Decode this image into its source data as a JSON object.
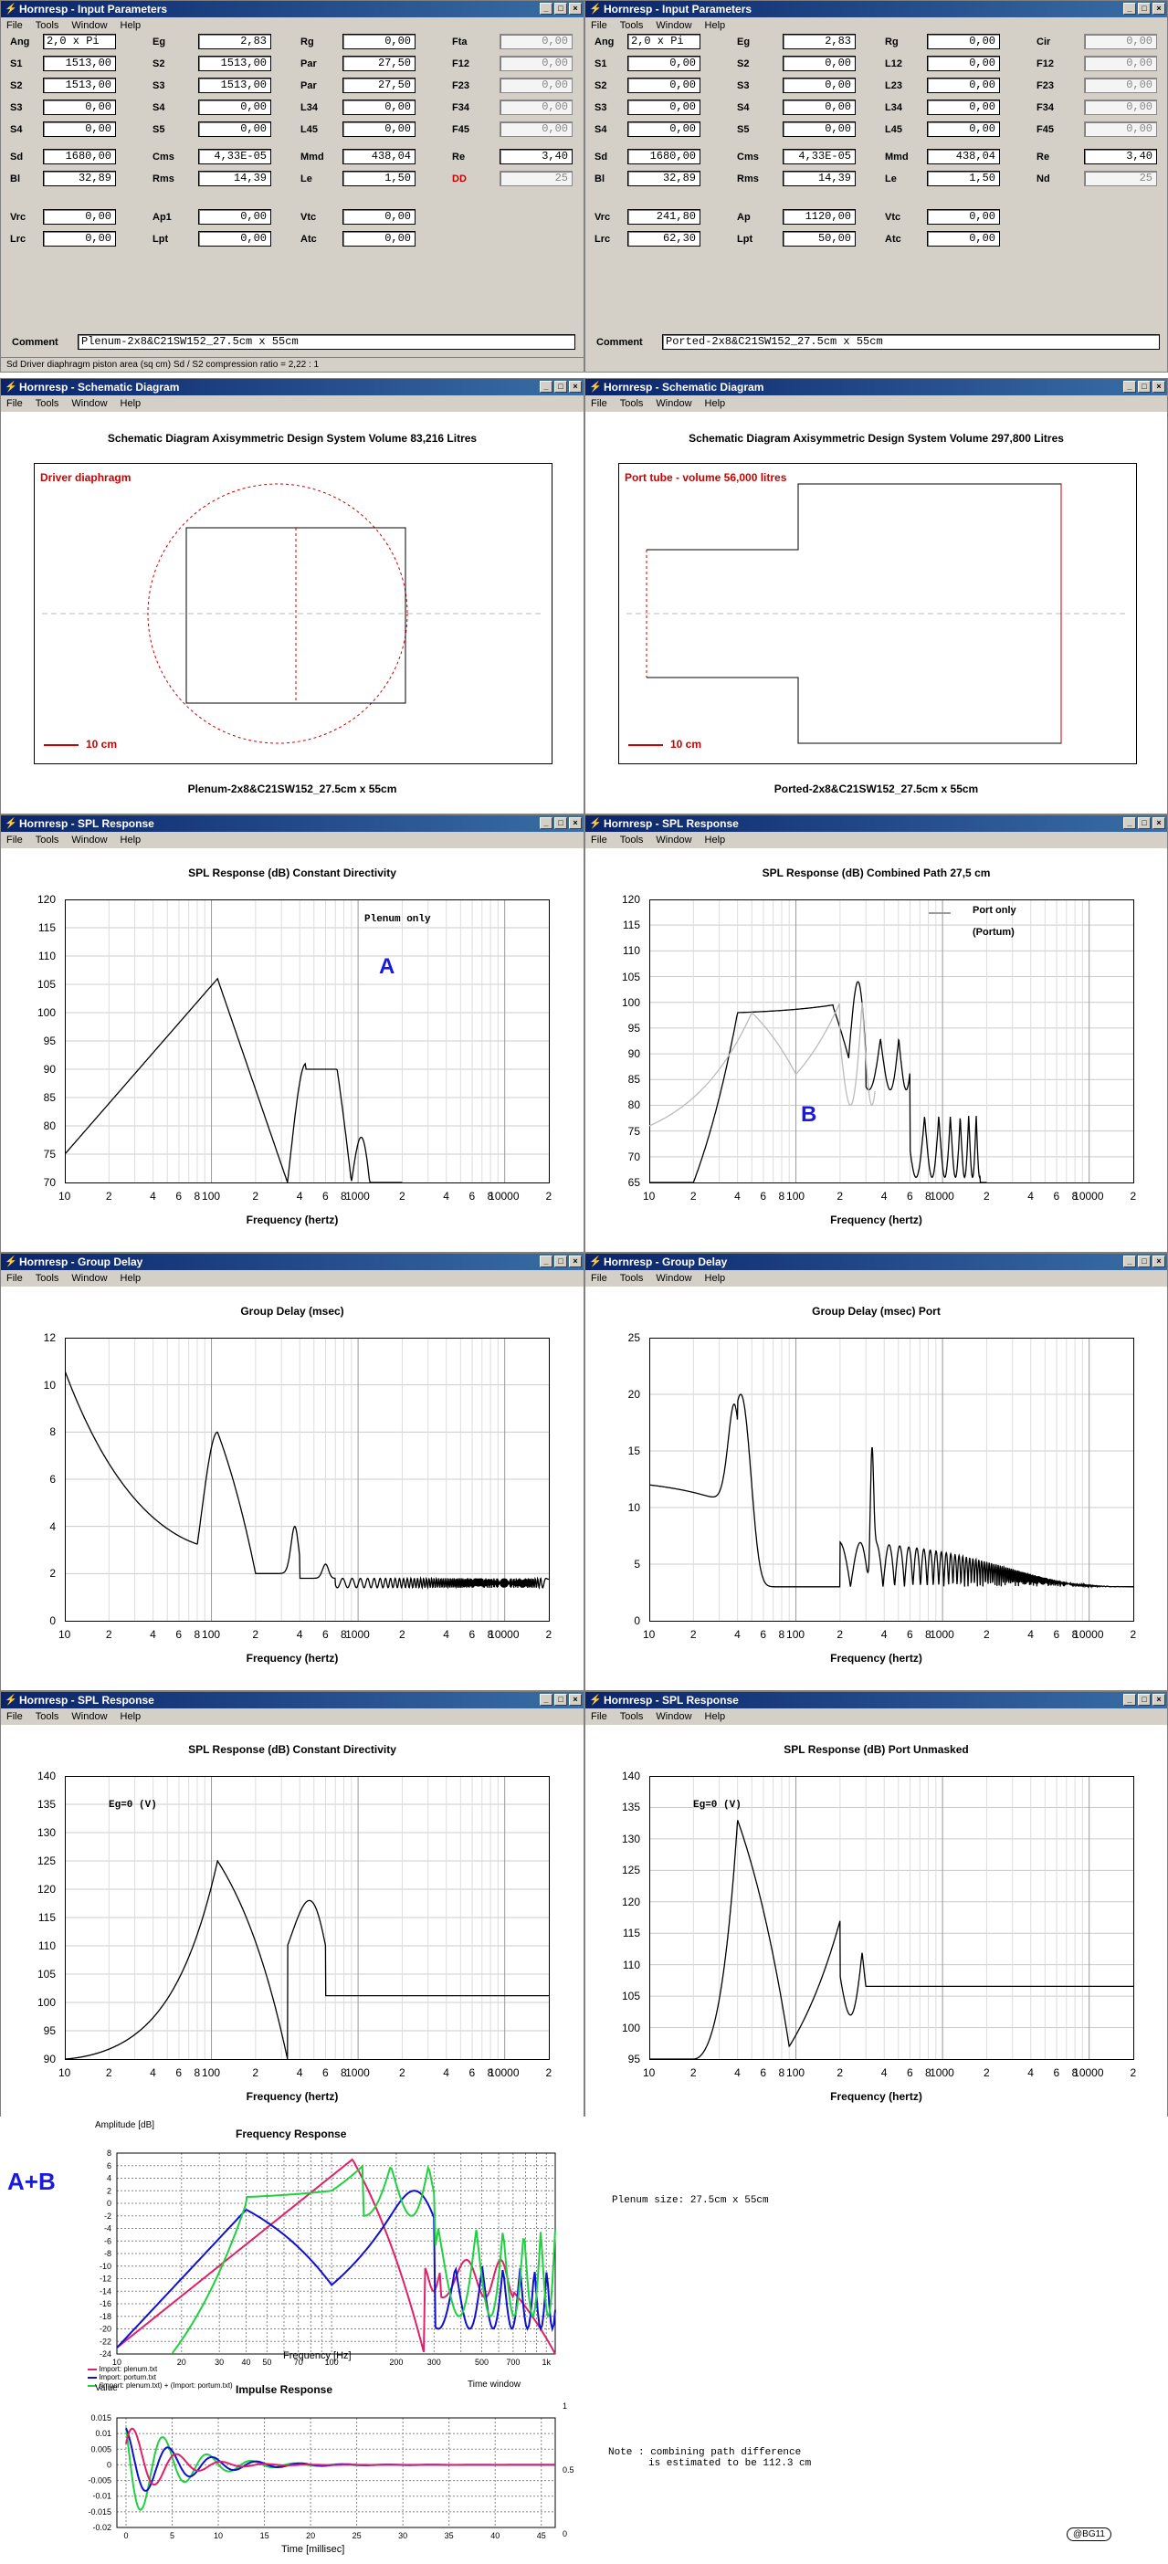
{
  "win_param_left": {
    "title": "Hornresp - Input Parameters",
    "menu": [
      "File",
      "Tools",
      "Window",
      "Help"
    ],
    "rows": [
      [
        [
          "Ang",
          "2,0 x Pi"
        ],
        [
          "Eg",
          "2,83"
        ],
        [
          "Rg",
          "0,00"
        ],
        [
          "Fta",
          "0,00"
        ]
      ],
      [
        [
          "S1",
          "1513,00"
        ],
        [
          "S2",
          "1513,00"
        ],
        [
          "Par",
          "27,50"
        ],
        [
          "F12",
          "0,00"
        ]
      ],
      [
        [
          "S2",
          "1513,00"
        ],
        [
          "S3",
          "1513,00"
        ],
        [
          "Par",
          "27,50"
        ],
        [
          "F23",
          "0,00"
        ]
      ],
      [
        [
          "S3",
          "0,00"
        ],
        [
          "S4",
          "0,00"
        ],
        [
          "L34",
          "0,00"
        ],
        [
          "F34",
          "0,00"
        ]
      ],
      [
        [
          "S4",
          "0,00"
        ],
        [
          "S5",
          "0,00"
        ],
        [
          "L45",
          "0,00"
        ],
        [
          "F45",
          "0,00"
        ]
      ],
      [
        [
          "Sd",
          "1680,00"
        ],
        [
          "Cms",
          "4,33E-05"
        ],
        [
          "Mmd",
          "438,04"
        ],
        [
          "Re",
          "3,40"
        ]
      ],
      [
        [
          "Bl",
          "32,89"
        ],
        [
          "Rms",
          "14,39"
        ],
        [
          "Le",
          "1,50"
        ],
        [
          "DD",
          "25"
        ]
      ],
      [
        [
          "Vrc",
          "0,00"
        ],
        [
          "Ap1",
          "0,00"
        ],
        [
          "Vtc",
          "0,00"
        ]
      ],
      [
        [
          "Lrc",
          "0,00"
        ],
        [
          "Lpt",
          "0,00"
        ],
        [
          "Atc",
          "0,00"
        ]
      ]
    ],
    "comment_label": "Comment",
    "comment": "Plenum-2x8&C21SW152_27.5cm x 55cm",
    "status": "Sd  Driver diaphragm piston area  (sq cm)   Sd / S2 compression ratio = 2,22 : 1"
  },
  "win_param_right": {
    "title": "Hornresp - Input Parameters",
    "menu": [
      "File",
      "Tools",
      "Window",
      "Help"
    ],
    "rows": [
      [
        [
          "Ang",
          "2,0 x Pi"
        ],
        [
          "Eg",
          "2,83"
        ],
        [
          "Rg",
          "0,00"
        ],
        [
          "Cir",
          "0,00"
        ]
      ],
      [
        [
          "S1",
          "0,00"
        ],
        [
          "S2",
          "0,00"
        ],
        [
          "L12",
          "0,00"
        ],
        [
          "F12",
          "0,00"
        ]
      ],
      [
        [
          "S2",
          "0,00"
        ],
        [
          "S3",
          "0,00"
        ],
        [
          "L23",
          "0,00"
        ],
        [
          "F23",
          "0,00"
        ]
      ],
      [
        [
          "S3",
          "0,00"
        ],
        [
          "S4",
          "0,00"
        ],
        [
          "L34",
          "0,00"
        ],
        [
          "F34",
          "0,00"
        ]
      ],
      [
        [
          "S4",
          "0,00"
        ],
        [
          "S5",
          "0,00"
        ],
        [
          "L45",
          "0,00"
        ],
        [
          "F45",
          "0,00"
        ]
      ],
      [
        [
          "Sd",
          "1680,00"
        ],
        [
          "Cms",
          "4,33E-05"
        ],
        [
          "Mmd",
          "438,04"
        ],
        [
          "Re",
          "3,40"
        ]
      ],
      [
        [
          "Bl",
          "32,89"
        ],
        [
          "Rms",
          "14,39"
        ],
        [
          "Le",
          "1,50"
        ],
        [
          "Nd",
          "25"
        ]
      ],
      [
        [
          "Vrc",
          "241,80"
        ],
        [
          "Ap",
          "1120,00"
        ],
        [
          "Vtc",
          "0,00"
        ]
      ],
      [
        [
          "Lrc",
          "62,30"
        ],
        [
          "Lpt",
          "50,00"
        ],
        [
          "Atc",
          "0,00"
        ]
      ]
    ],
    "comment_label": "Comment",
    "comment": "Ported-2x8&C21SW152_27.5cm x 55cm"
  },
  "schem_left": {
    "title": "Hornresp - Schematic Diagram",
    "menu": [
      "File",
      "Tools",
      "Window",
      "Help"
    ],
    "heading": "Schematic Diagram   Axisymmetric Design   System Volume 83,216 Litres",
    "label": "Driver diaphragm",
    "scale": "10 cm",
    "caption": "Plenum-2x8&C21SW152_27.5cm x 55cm"
  },
  "schem_right": {
    "title": "Hornresp - Schematic Diagram",
    "menu": [
      "File",
      "Tools",
      "Window",
      "Help"
    ],
    "heading": "Schematic Diagram   Axisymmetric Design   System Volume 297,800 Litres",
    "label": "Port tube - volume 56,000 litres",
    "scale": "10 cm",
    "caption": "Ported-2x8&C21SW152_27.5cm x 55cm"
  },
  "spl_left": {
    "title": "Hornresp - SPL Response",
    "menu": [
      "File",
      "Tools",
      "Window",
      "Help"
    ],
    "heading": "SPL Response (dB)   Constant Directivity",
    "note": "Plenum only",
    "marker": "A",
    "xlabel": "Frequency (hertz)"
  },
  "spl_right": {
    "title": "Hornresp - SPL Response",
    "menu": [
      "File",
      "Tools",
      "Window",
      "Help"
    ],
    "heading": "SPL Response (dB)   Combined   Path 27,5 cm",
    "legend": "Port only",
    "legend2": "(Portum)",
    "marker": "B",
    "xlabel": "Frequency (hertz)"
  },
  "gd_left": {
    "title": "Hornresp - Group Delay",
    "menu": [
      "File",
      "Tools",
      "Window",
      "Help"
    ],
    "heading": "Group Delay (msec)",
    "xlabel": "Frequency (hertz)"
  },
  "gd_right": {
    "title": "Hornresp - Group Delay",
    "menu": [
      "File",
      "Tools",
      "Window",
      "Help"
    ],
    "heading": "Group Delay (msec)   Port",
    "xlabel": "Frequency (hertz)"
  },
  "spl2_left": {
    "title": "Hornresp - SPL Response",
    "menu": [
      "File",
      "Tools",
      "Window",
      "Help"
    ],
    "heading": "SPL Response (dB)   Constant Directivity",
    "note": "Eg=0 (V)",
    "xlabel": "Frequency (hertz)"
  },
  "spl2_right": {
    "title": "Hornresp - SPL Response",
    "menu": [
      "File",
      "Tools",
      "Window",
      "Help"
    ],
    "heading": "SPL Response (dB)   Port   Unmasked",
    "note": "Eg=0 (V)",
    "xlabel": "Frequency (hertz)"
  },
  "xticks": [
    "10",
    "2",
    "4",
    "6",
    "8",
    "100",
    "2",
    "4",
    "6",
    "8",
    "1000",
    "2",
    "4",
    "6",
    "8",
    "10000",
    "2"
  ],
  "axes": {
    "spl_left": [
      "120",
      "115",
      "110",
      "105",
      "100",
      "95",
      "90",
      "85",
      "80",
      "75",
      "70"
    ],
    "spl_right": [
      "120",
      "115",
      "110",
      "105",
      "100",
      "95",
      "90",
      "85",
      "80",
      "75",
      "70",
      "65"
    ],
    "gd_left": [
      "12",
      "10",
      "8",
      "6",
      "4",
      "2",
      "0"
    ],
    "gd_right": [
      "25",
      "20",
      "15",
      "10",
      "5",
      "0"
    ],
    "spl2_left": [
      "140",
      "135",
      "130",
      "125",
      "120",
      "115",
      "110",
      "105",
      "100",
      "95",
      "90"
    ],
    "spl2_right": [
      "140",
      "135",
      "130",
      "125",
      "120",
      "115",
      "110",
      "105",
      "100",
      "95"
    ]
  },
  "bottom": {
    "label_ab": "A+B",
    "fr_title": "Frequency Response",
    "fr_ylabel": "Amplitude [dB]",
    "fr_xlabel": "Frequency [Hz]",
    "fr_yticks": [
      "8",
      "6",
      "4",
      "2",
      "0",
      "-2",
      "-4",
      "-6",
      "-8",
      "-10",
      "-12",
      "-14",
      "-16",
      "-18",
      "-20",
      "-22",
      "-24"
    ],
    "fr_xticks": [
      "10",
      "20",
      "30",
      "40",
      "50",
      "70",
      "100",
      "200",
      "300",
      "500",
      "700",
      "1k"
    ],
    "legend": [
      "Import: plenum.txt",
      "Import: portum.txt",
      "(Import: plenum.txt) + (Import: portum.txt)"
    ],
    "plenum_size": "Plenum size: 27.5cm x 55cm",
    "ir_title": "Impulse Response",
    "ir_value": "Value",
    "ir_window": "Time window",
    "ir_yticks": [
      "0.015",
      "0.01",
      "0.005",
      "0",
      "-0.005",
      "-0.01",
      "-0.015",
      "-0.02"
    ],
    "ir_xticks": [
      "0",
      "5",
      "10",
      "15",
      "20",
      "25",
      "30",
      "35",
      "40",
      "45"
    ],
    "ir_rticks": [
      "1",
      "0.5",
      "0"
    ],
    "ir_xlabel": "Time [millisec]",
    "note1": "Note : combining path difference",
    "note2": "is estimated to be 112.3 cm",
    "tag": "@BG11"
  },
  "colors": {
    "title": "#0a246a",
    "plenum": "#e0206b",
    "portum": "#1010d0",
    "sum": "#20d040",
    "red": "#cc0000",
    "blue": "#1a1adc"
  }
}
